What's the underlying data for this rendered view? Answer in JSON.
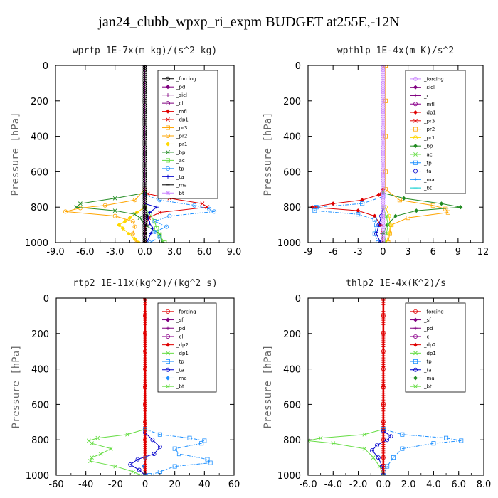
{
  "figure": {
    "title": "jan24_clubb_wpxp_ri_expm  BUDGET at255E,-12N"
  },
  "chart_data": [
    {
      "type": "line",
      "title": "wprtp   1E-7x(m kg)/(s^2 kg)",
      "ylabel": "Pressure [hPa]",
      "xlim": [
        -9,
        9
      ],
      "ylim": [
        1000,
        0
      ],
      "xticks": [
        "-9.0",
        "-6.0",
        "-3.0",
        "0.0",
        "3.0",
        "6.0",
        "9.0"
      ],
      "yticks": [
        "0",
        "200",
        "400",
        "600",
        "800",
        "1000"
      ],
      "legend": [
        "_forcing",
        "_pd",
        "_sicl",
        "_cl",
        "_mfl",
        "_dp1",
        "_pr3",
        "_pr2",
        "_pr1",
        "_bp",
        "_ac",
        "_tp",
        "_ta",
        "_ma",
        "_bt"
      ],
      "series": [
        {
          "name": "_forcing",
          "color": "#000000",
          "y": [
            0,
            100,
            200,
            300,
            400,
            500,
            600,
            700,
            750,
            800,
            850,
            900,
            950,
            1000
          ],
          "x": [
            0,
            0,
            0,
            0,
            0,
            0,
            0,
            0,
            0,
            0,
            0,
            0,
            0,
            0
          ]
        },
        {
          "name": "_dp1",
          "color": "#e00000",
          "y": [
            700,
            725,
            750,
            780,
            800,
            830,
            860,
            900,
            950,
            1000
          ],
          "x": [
            0,
            0.3,
            2.5,
            5.8,
            6.3,
            1.5,
            0.4,
            0.1,
            0,
            0
          ]
        },
        {
          "name": "_pr2",
          "color": "#ffa500",
          "y": [
            700,
            760,
            790,
            805,
            825,
            850,
            880,
            910,
            950,
            1000
          ],
          "x": [
            0,
            -1.0,
            -4.0,
            -6.5,
            -8.0,
            -3.0,
            -1.2,
            -1.0,
            -1.2,
            -0.8
          ]
        },
        {
          "name": "_pr1",
          "color": "#ffd800",
          "y": [
            800,
            830,
            860,
            880,
            900,
            920,
            950,
            980,
            1000
          ],
          "x": [
            0,
            -0.8,
            -1.5,
            -2.0,
            -2.6,
            -2.2,
            -1.6,
            -1.0,
            -0.6
          ]
        },
        {
          "name": "_bp",
          "color": "#228b22",
          "y": [
            720,
            750,
            780,
            800,
            820,
            840,
            860,
            900,
            950,
            1000
          ],
          "x": [
            0,
            -3.0,
            -6.5,
            -6.9,
            -3.0,
            -1.0,
            -0.5,
            0,
            1.5,
            1.8
          ]
        },
        {
          "name": "_ac",
          "color": "#66dd44",
          "y": [
            800,
            840,
            880,
            920,
            960,
            1000
          ],
          "x": [
            0,
            0.5,
            1.0,
            1.2,
            1.5,
            2.0
          ]
        },
        {
          "name": "_tp",
          "color": "#1e90ff",
          "y": [
            730,
            760,
            790,
            810,
            825,
            850,
            880,
            910,
            940,
            970,
            1000
          ],
          "x": [
            0,
            1.5,
            5.0,
            6.5,
            7.0,
            2.5,
            1.0,
            2.2,
            1.0,
            1.5,
            0.5
          ]
        },
        {
          "name": "_ta",
          "color": "#0000cc",
          "y": [
            780,
            800,
            830,
            860,
            890,
            920,
            950,
            1000
          ],
          "x": [
            0,
            1.2,
            0.5,
            0.3,
            0.5,
            0.8,
            0.6,
            0.2
          ]
        },
        {
          "name": "_ma",
          "color": "#000000",
          "y": [
            800,
            850,
            900,
            950,
            1000
          ],
          "x": [
            0,
            0.3,
            0.2,
            0,
            -0.2
          ]
        },
        {
          "name": "_sicl",
          "color": "#800080",
          "y": [
            0,
            1000
          ],
          "x": [
            0,
            0
          ]
        },
        {
          "name": "_cl",
          "color": "#800080",
          "y": [
            0,
            1000
          ],
          "x": [
            0,
            0
          ]
        }
      ]
    },
    {
      "type": "line",
      "title": "wpthlp   1E-4x(m K)/s^2",
      "ylabel": "Pressure [hPa]",
      "xlim": [
        -9,
        12
      ],
      "ylim": [
        1000,
        0
      ],
      "xticks": [
        "-9",
        "-6",
        "-3",
        "0",
        "3",
        "6",
        "9",
        "12"
      ],
      "yticks": [
        "0",
        "200",
        "400",
        "600",
        "800",
        "1000"
      ],
      "legend": [
        "_forcing",
        "_sicl",
        "_cl",
        "_mfl",
        "_dp1",
        "_pr3",
        "_pr2",
        "_pr1",
        "_bp",
        "_ac",
        "_tp",
        "_ta",
        "_ma",
        "_bt"
      ],
      "series": [
        {
          "name": "_forcing",
          "color": "#cc88ff",
          "y": [
            0,
            200,
            400,
            600,
            800,
            1000
          ],
          "x": [
            0,
            0,
            0,
            0,
            0,
            0
          ]
        },
        {
          "name": "_dp1",
          "color": "#e00000",
          "y": [
            700,
            730,
            760,
            780,
            800,
            820,
            850,
            900,
            950,
            1000
          ],
          "x": [
            0,
            -0.5,
            -2.5,
            -6.0,
            -8.5,
            -3.0,
            -1.0,
            -0.3,
            -0.1,
            0
          ]
        },
        {
          "name": "_pr2",
          "color": "#ffa500",
          "y": [
            0,
            200,
            400,
            600,
            700,
            760,
            790,
            810,
            830,
            860,
            900,
            950,
            1000
          ],
          "x": [
            0.3,
            0.3,
            0.3,
            0.3,
            0.3,
            2.0,
            6.0,
            7.5,
            7.8,
            3.0,
            1.0,
            0.8,
            0.6
          ]
        },
        {
          "name": "_pr1",
          "color": "#ffd800",
          "y": [
            800,
            850,
            900,
            950,
            1000
          ],
          "x": [
            0.3,
            0.7,
            0.9,
            0.7,
            0.4
          ]
        },
        {
          "name": "_bp",
          "color": "#228b22",
          "y": [
            720,
            750,
            780,
            800,
            820,
            850,
            900,
            950,
            1000
          ],
          "x": [
            0,
            2.5,
            7.0,
            9.3,
            4.0,
            1.5,
            0.5,
            0,
            -0.3
          ]
        },
        {
          "name": "_ac",
          "color": "#66dd44",
          "y": [
            800,
            850,
            900,
            950,
            1000
          ],
          "x": [
            0,
            0.4,
            0.6,
            0.4,
            0.2
          ]
        },
        {
          "name": "_tp",
          "color": "#1e90ff",
          "y": [
            740,
            780,
            800,
            820,
            840,
            870,
            900,
            950,
            1000
          ],
          "x": [
            0,
            -2.5,
            -8.0,
            -8.2,
            -3.0,
            -1.0,
            -0.8,
            -1.0,
            -0.6
          ]
        },
        {
          "name": "_ta",
          "color": "#0000cc",
          "y": [
            800,
            850,
            900,
            950,
            1000
          ],
          "x": [
            0,
            -0.2,
            -0.5,
            -0.8,
            -0.3
          ]
        }
      ]
    },
    {
      "type": "line",
      "title": "rtp2   1E-11x(kg^2)/(kg^2 s)",
      "ylabel": "Pressure [hPa]",
      "xlim": [
        -60,
        60
      ],
      "ylim": [
        1000,
        0
      ],
      "xticks": [
        "-60",
        "-40",
        "-20",
        "0",
        "20",
        "40",
        "60"
      ],
      "yticks": [
        "0",
        "200",
        "400",
        "600",
        "800",
        "1000"
      ],
      "legend": [
        "_forcing",
        "_sf",
        "_pd",
        "_cl",
        "_dp2",
        "_dp1",
        "_tp",
        "_ta",
        "_ma",
        "_bt"
      ],
      "series": [
        {
          "name": "_forcing",
          "color": "#e00000",
          "y": [
            0,
            100,
            200,
            300,
            400,
            500,
            600,
            700,
            800,
            900,
            1000
          ],
          "x": [
            0,
            0,
            0,
            0,
            0,
            0,
            0,
            0,
            0,
            0,
            0
          ]
        },
        {
          "name": "_dp1",
          "color": "#66dd44",
          "y": [
            740,
            770,
            790,
            805,
            820,
            850,
            880,
            900,
            920,
            950,
            980,
            1000
          ],
          "x": [
            0,
            -12,
            -32,
            -38,
            -36,
            -23,
            -30,
            -36,
            -37,
            -20,
            -8,
            -3
          ]
        },
        {
          "name": "_tp",
          "color": "#1e90ff",
          "y": [
            740,
            770,
            790,
            805,
            820,
            850,
            880,
            910,
            930,
            950,
            980,
            1000
          ],
          "x": [
            0,
            10,
            30,
            40,
            38,
            20,
            23,
            42,
            44,
            20,
            10,
            3
          ]
        },
        {
          "name": "_ta",
          "color": "#0000cc",
          "y": [
            760,
            800,
            840,
            880,
            910,
            940,
            970,
            1000
          ],
          "x": [
            0,
            5,
            10,
            6,
            -5,
            -10,
            -4,
            0
          ]
        },
        {
          "name": "_ma",
          "color": "#1e90ff",
          "y": [
            900,
            950,
            1000
          ],
          "x": [
            0,
            -1,
            0
          ]
        }
      ]
    },
    {
      "type": "line",
      "title": "thlp2   1E-4x(K^2)/s",
      "ylabel": "Pressure [hPa]",
      "xlim": [
        -6,
        8
      ],
      "ylim": [
        1000,
        0
      ],
      "xticks": [
        "-6.0",
        "-4.0",
        "-2.0",
        "0.0",
        "2.0",
        "4.0",
        "6.0",
        "8.0"
      ],
      "yticks": [
        "0",
        "200",
        "400",
        "600",
        "800",
        "1000"
      ],
      "legend": [
        "_forcing",
        "_sf",
        "_pd",
        "_cl",
        "_dp2",
        "_dp1",
        "_tp",
        "_ta",
        "_ma",
        "_bt"
      ],
      "series": [
        {
          "name": "_forcing",
          "color": "#e00000",
          "y": [
            0,
            100,
            200,
            300,
            400,
            500,
            600,
            700,
            800,
            900,
            1000
          ],
          "x": [
            0,
            0,
            0,
            0,
            0,
            0,
            0,
            0,
            0,
            0,
            0
          ]
        },
        {
          "name": "_dp1",
          "color": "#66dd44",
          "y": [
            740,
            770,
            790,
            805,
            820,
            850,
            900,
            950,
            1000
          ],
          "x": [
            0,
            -1.5,
            -5.0,
            -6.0,
            -4.0,
            -1.5,
            -0.8,
            -0.3,
            0
          ]
        },
        {
          "name": "_tp",
          "color": "#1e90ff",
          "y": [
            740,
            770,
            790,
            805,
            820,
            850,
            900,
            950,
            1000
          ],
          "x": [
            0,
            1.5,
            5.0,
            6.2,
            4.0,
            1.5,
            0.8,
            0.3,
            0
          ]
        },
        {
          "name": "_ta",
          "color": "#0000cc",
          "y": [
            750,
            780,
            800,
            830,
            860,
            900,
            950,
            1000
          ],
          "x": [
            0,
            0.6,
            0.3,
            -0.5,
            -0.9,
            -0.4,
            -0.1,
            0
          ]
        }
      ]
    }
  ]
}
